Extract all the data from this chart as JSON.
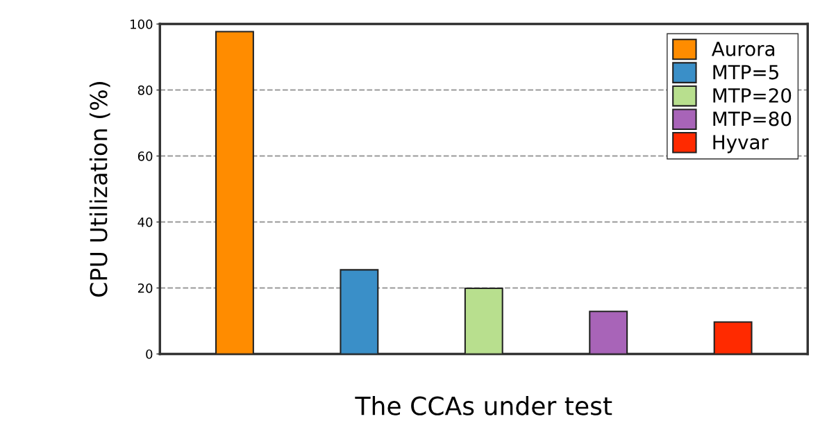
{
  "chart_data": {
    "type": "bar",
    "xlabel": "The CCAs under test",
    "ylabel": "CPU Utilization (%)",
    "categories": [
      null,
      null,
      null,
      null,
      null
    ],
    "series": [
      {
        "name": "Aurora",
        "color": "#ff8c00",
        "values": [
          97.7,
          null,
          null,
          null,
          null
        ]
      },
      {
        "name": "MTP=5",
        "color": "#3a8fc8",
        "values": [
          null,
          25.5,
          null,
          null,
          null
        ]
      },
      {
        "name": "MTP=20",
        "color": "#b8df8e",
        "values": [
          null,
          null,
          19.9,
          null,
          null
        ]
      },
      {
        "name": "MTP=80",
        "color": "#a864b8",
        "values": [
          null,
          null,
          null,
          12.9,
          null
        ]
      },
      {
        "name": "Hyvar",
        "color": "#ff2a00",
        "values": [
          null,
          null,
          null,
          null,
          9.7
        ]
      }
    ],
    "ylim": [
      0,
      100
    ],
    "yticks": [
      0,
      20,
      40,
      60,
      80,
      100
    ],
    "grid": "y",
    "legend": "top right"
  }
}
